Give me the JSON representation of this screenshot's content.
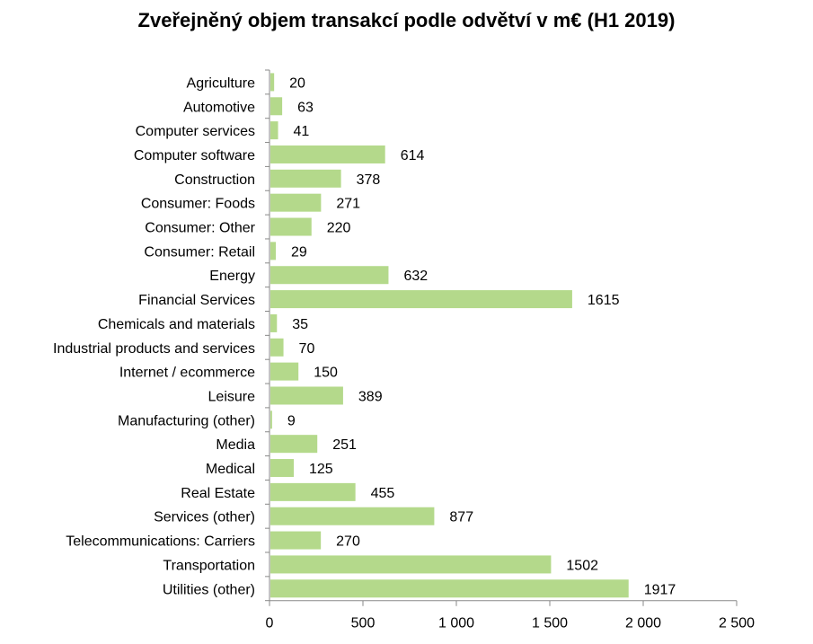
{
  "chart_data": {
    "type": "bar",
    "orientation": "horizontal",
    "title": "Zveřejněný objem transakcí podle odvětví v m€  (H1 2019)",
    "categories": [
      "Agriculture",
      "Automotive",
      "Computer services",
      "Computer software",
      "Construction",
      "Consumer: Foods",
      "Consumer: Other",
      "Consumer: Retail",
      "Energy",
      "Financial Services",
      "Chemicals and materials",
      "Industrial products and services",
      "Internet / ecommerce",
      "Leisure",
      "Manufacturing (other)",
      "Media",
      "Medical",
      "Real Estate",
      "Services (other)",
      "Telecommunications: Carriers",
      "Transportation",
      "Utilities (other)"
    ],
    "values": [
      20,
      63,
      41,
      614,
      378,
      271,
      220,
      29,
      632,
      1615,
      35,
      70,
      150,
      389,
      9,
      251,
      125,
      455,
      877,
      270,
      1502,
      1917
    ],
    "xlim": [
      0,
      2500
    ],
    "xticks": [
      0,
      500,
      1000,
      1500,
      2000,
      2500
    ],
    "xtick_labels": [
      "0",
      "500",
      "1 000",
      "1 500",
      "2 000",
      "2 500"
    ],
    "grid": false,
    "legend": "none",
    "bar_color": "#b4d98b",
    "axis_color": "#888888"
  }
}
